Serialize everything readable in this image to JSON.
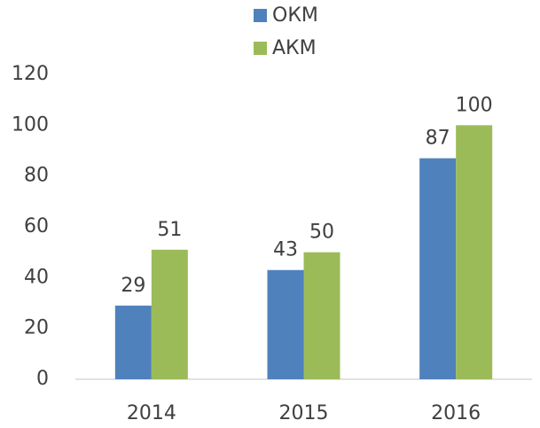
{
  "chart_data": {
    "type": "bar",
    "categories": [
      "2014",
      "2015",
      "2016"
    ],
    "series": [
      {
        "name": "ОКМ",
        "color": "#4f81bd",
        "values": [
          29,
          43,
          87
        ]
      },
      {
        "name": "АКМ",
        "color": "#9bbb59",
        "values": [
          51,
          50,
          100
        ]
      }
    ],
    "ylim": [
      0,
      120
    ],
    "yticks": [
      0,
      20,
      40,
      60,
      80,
      100,
      120
    ],
    "legend": "top"
  }
}
